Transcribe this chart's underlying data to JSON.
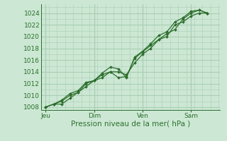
{
  "bg_color": "#cce8d4",
  "plot_bg_color": "#cce8d4",
  "grid_color": "#aacdb4",
  "line_color": "#2d6e2d",
  "marker_color": "#2d6e2d",
  "axis_label": "Pression niveau de la mer( hPa )",
  "ylim": [
    1007.5,
    1025.5
  ],
  "yticks": [
    1008,
    1010,
    1012,
    1014,
    1016,
    1018,
    1020,
    1022,
    1024
  ],
  "xtick_labels": [
    "Jeu",
    "Dim",
    "Ven",
    "Sam"
  ],
  "xtick_positions": [
    0.0,
    3.0,
    6.0,
    9.0
  ],
  "xlim": [
    -0.3,
    10.8
  ],
  "vline_positions": [
    0.0,
    3.0,
    6.0,
    9.0
  ],
  "series1": {
    "x": [
      0.0,
      0.5,
      1.0,
      1.5,
      2.0,
      2.5,
      3.0,
      3.5,
      4.0,
      4.5,
      5.0,
      5.5,
      6.0,
      6.5,
      7.0,
      7.5,
      8.0,
      8.5,
      9.0,
      9.5,
      10.0
    ],
    "y": [
      1008.0,
      1008.5,
      1008.5,
      1009.5,
      1010.5,
      1012.0,
      1012.5,
      1013.5,
      1014.0,
      1013.0,
      1013.2,
      1016.3,
      1017.4,
      1018.5,
      1019.5,
      1020.5,
      1021.2,
      1023.0,
      1024.0,
      1024.5,
      1024.0
    ]
  },
  "series2": {
    "x": [
      0.0,
      0.5,
      1.0,
      1.5,
      2.0,
      2.5,
      3.0,
      3.5,
      4.0,
      4.5,
      5.0,
      5.5,
      6.0,
      6.5,
      7.0,
      7.5,
      8.0,
      8.5,
      9.0,
      9.5,
      10.0
    ],
    "y": [
      1008.0,
      1008.5,
      1009.2,
      1010.3,
      1010.8,
      1012.2,
      1012.5,
      1013.8,
      1014.8,
      1014.5,
      1013.0,
      1016.5,
      1017.5,
      1018.8,
      1020.2,
      1020.8,
      1022.5,
      1023.2,
      1024.3,
      1024.5,
      1024.0
    ]
  },
  "series3": {
    "x": [
      0.0,
      0.5,
      1.0,
      1.5,
      2.0,
      2.5,
      3.0,
      3.5,
      4.0,
      4.5,
      5.0,
      5.5,
      6.0,
      6.5,
      7.0,
      7.5,
      8.0,
      8.5,
      9.0,
      9.5,
      10.0
    ],
    "y": [
      1008.0,
      1008.5,
      1009.0,
      1010.0,
      1010.5,
      1011.5,
      1012.5,
      1013.0,
      1014.0,
      1014.0,
      1013.5,
      1015.5,
      1017.0,
      1018.0,
      1019.5,
      1020.0,
      1022.0,
      1022.5,
      1023.5,
      1024.0,
      1024.0
    ]
  },
  "label_fontsize": 6.5,
  "xlabel_fontsize": 7.5,
  "linewidth": 0.9,
  "markersize": 2.0
}
